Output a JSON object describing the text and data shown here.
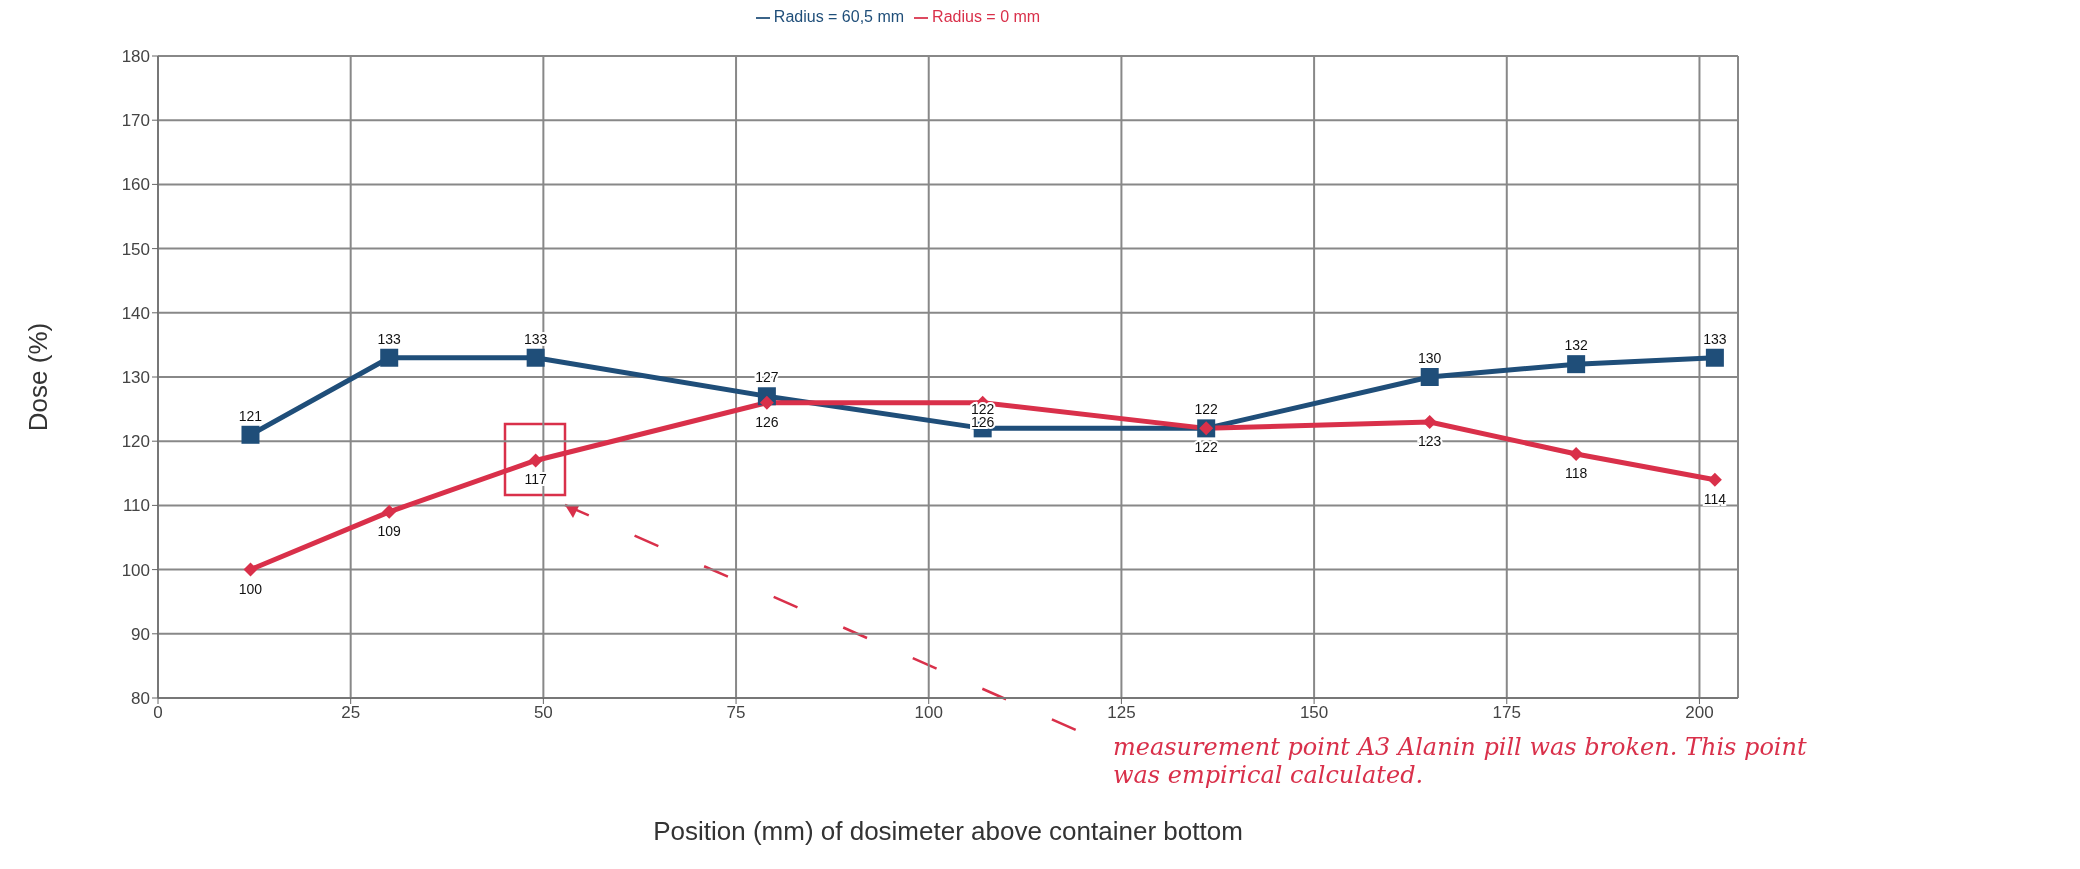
{
  "chart_data": {
    "type": "line",
    "x": [
      12,
      30,
      49,
      79,
      107,
      136,
      165,
      184,
      202
    ],
    "series": [
      {
        "name": "Radius = 60,5 mm",
        "color": "#1f4e79",
        "marker": "square",
        "values": [
          121,
          133,
          133,
          127,
          122,
          122,
          130,
          132,
          133
        ]
      },
      {
        "name": "Radius = 0 mm",
        "color": "#d9304a",
        "marker": "diamond",
        "values": [
          100,
          109,
          117,
          126,
          126,
          122,
          123,
          118,
          114
        ]
      }
    ],
    "xlabel": "Position (mm) of dosimeter above container bottom",
    "ylabel": "Dose (%)",
    "xlim": [
      0,
      205
    ],
    "xticks": [
      0,
      25,
      50,
      75,
      100,
      125,
      150,
      175,
      200
    ],
    "ylim": [
      80,
      180
    ],
    "yticks": [
      80,
      90,
      100,
      110,
      120,
      130,
      140,
      150,
      160,
      170,
      180
    ],
    "grid": true,
    "legend": "top",
    "data_labels": true,
    "line_style": "solid",
    "annotations": [
      "measurement point A3 Alanin pill was broken. This point was empirical calculated."
    ]
  }
}
